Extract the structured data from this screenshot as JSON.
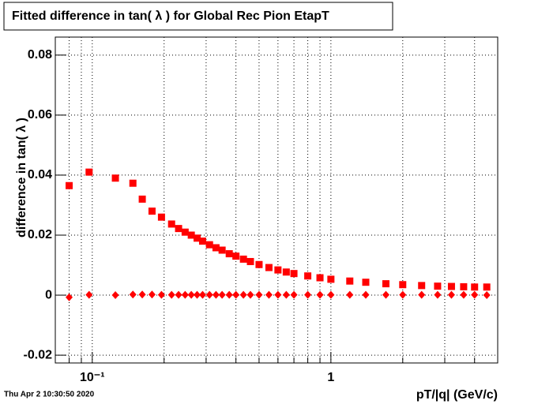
{
  "chart_data": {
    "type": "scatter",
    "title": "Fitted difference in tan( λ ) for Global Rec Pion EtapT",
    "x_label": "pT/|q| (GeV/c)",
    "y_label": "difference in tan( λ )",
    "timestamp": "Thu Apr  2 10:30:50 2020",
    "x_log": true,
    "grid": true,
    "xlim": [
      0.07,
      5
    ],
    "ylim": [
      -0.0226,
      0.086
    ],
    "xticks": [
      {
        "value": 0.1,
        "label": "10⁻¹"
      },
      1
    ],
    "xminor": [
      0.08,
      0.09,
      0.2,
      0.3,
      0.4,
      0.5,
      0.6,
      0.7,
      0.8,
      0.9,
      2,
      3,
      4
    ],
    "yticks": [
      -0.02,
      0,
      0.02,
      0.04,
      0.06,
      0.08
    ],
    "x": [
      0.08,
      0.097,
      0.125,
      0.148,
      0.162,
      0.178,
      0.195,
      0.215,
      0.23,
      0.245,
      0.26,
      0.275,
      0.29,
      0.31,
      0.33,
      0.35,
      0.375,
      0.4,
      0.43,
      0.46,
      0.5,
      0.55,
      0.6,
      0.65,
      0.7,
      0.8,
      0.9,
      1.0,
      1.2,
      1.4,
      1.7,
      2.0,
      2.4,
      2.8,
      3.2,
      3.6,
      4.0,
      4.5
    ],
    "series": [
      {
        "color": "#ff0000",
        "marker": "square",
        "values": [
          0.0365,
          0.041,
          0.039,
          0.0373,
          0.032,
          0.028,
          0.026,
          0.0237,
          0.0222,
          0.021,
          0.02,
          0.019,
          0.018,
          0.0168,
          0.0158,
          0.015,
          0.0138,
          0.013,
          0.012,
          0.0112,
          0.0102,
          0.0092,
          0.0084,
          0.0077,
          0.0072,
          0.0064,
          0.0058,
          0.0053,
          0.0047,
          0.0043,
          0.0038,
          0.0035,
          0.0032,
          0.003,
          0.0029,
          0.0028,
          0.0027,
          0.0027
        ]
      },
      {
        "color": "#ff0000",
        "marker": "diamond",
        "values": [
          -0.0007,
          0.0001,
          0.0,
          0.0002,
          0.0002,
          0.0002,
          0.0001,
          0.0001,
          0.0001,
          0.0001,
          0.0001,
          0.0001,
          0.0001,
          0.0001,
          0.0001,
          0.0001,
          0.0001,
          0.0001,
          0.0001,
          0.0001,
          0.0001,
          0.0001,
          0.0001,
          0.0001,
          0.0001,
          0.0001,
          0.0001,
          0.0001,
          0.0001,
          0.0001,
          0.0001,
          0.0001,
          0.0001,
          0.0001,
          0.0001,
          0.0001,
          0.0001,
          0.0
        ]
      }
    ]
  }
}
